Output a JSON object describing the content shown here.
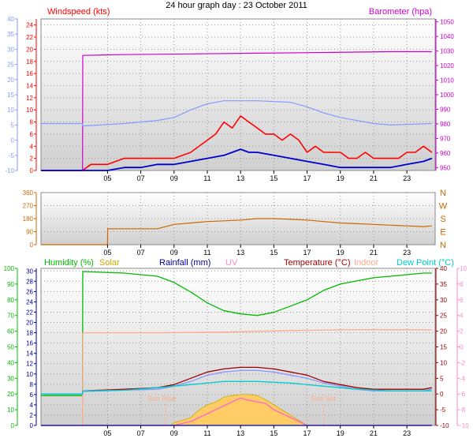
{
  "title": "24 hour graph day : 23 October 2011",
  "colors": {
    "windspeed": "#ff0000",
    "windgust": "#ff0000",
    "windavg": "#0000cc",
    "barometer": "#cc00cc",
    "temp_left_axis": "#8899ff",
    "wind_dir": "#cc6600",
    "humidity": "#00bb00",
    "solar": "#ccaa00",
    "rainfall": "#000099",
    "uv": "#ff88cc",
    "temperature": "#990000",
    "indoor": "#ffaa88",
    "dew_point": "#00cccc",
    "solar_fill": "#ffcc66",
    "uv_line": "#ff66cc"
  },
  "chart_data": [
    {
      "type": "line",
      "name": "wind-barometer-panel",
      "labels": {
        "left": "Windspeed (kts)",
        "right": "Barometer (hpa)"
      },
      "x_ticks": [
        "05",
        "07",
        "09",
        "11",
        "13",
        "15",
        "17",
        "19",
        "21",
        "23"
      ],
      "xlim": [
        1,
        24.7
      ],
      "outer_left_ticks": [
        "-10",
        "-5",
        "0",
        "5",
        "10",
        "15",
        "20",
        "25",
        "30",
        "35",
        "40"
      ],
      "outer_left_ylim": [
        -10,
        40
      ],
      "left_ticks": [
        "0",
        "2",
        "4",
        "6",
        "8",
        "10",
        "12",
        "14",
        "16",
        "18",
        "20",
        "22",
        "24"
      ],
      "left_ylim": [
        0,
        25
      ],
      "right_ticks": [
        "950",
        "960",
        "970",
        "980",
        "990",
        "1000",
        "1010",
        "1020",
        "1030",
        "1040",
        "1050"
      ],
      "right_ylim": [
        948,
        1052
      ],
      "grid": true,
      "series": [
        {
          "key": "barometer",
          "axis": "right",
          "x": [
            1,
            3.5,
            3.51,
            6,
            10,
            14,
            18,
            22,
            24.5
          ],
          "y": [
            948,
            948,
            1027,
            1027.5,
            1028,
            1028.5,
            1029,
            1029.5,
            1029.5
          ]
        },
        {
          "key": "temp_left_axis",
          "axis": "outer_left",
          "x": [
            1,
            3.5,
            3.51,
            6,
            8,
            9,
            10,
            11,
            12,
            14,
            16,
            17,
            18,
            19,
            21,
            22,
            24.5
          ],
          "y": [
            5.5,
            5.5,
            4.7,
            5.5,
            6.5,
            7.5,
            10,
            12,
            13,
            13,
            12.5,
            11,
            9,
            7.5,
            5.5,
            5,
            5.5
          ]
        },
        {
          "key": "windgust",
          "axis": "left",
          "x": [
            1,
            3.5,
            4,
            5,
            6,
            7,
            8,
            9,
            10,
            11,
            11.5,
            12,
            12.5,
            13,
            13.5,
            14,
            14.5,
            15,
            15.5,
            16,
            16.5,
            17,
            17.5,
            18,
            18.5,
            19,
            19.5,
            20,
            20.5,
            21,
            21.5,
            22,
            22.5,
            23,
            23.5,
            24,
            24.5
          ],
          "y": [
            0,
            0,
            1,
            1,
            2,
            2,
            2,
            2,
            3,
            5,
            6,
            8,
            7,
            9,
            8,
            7,
            6,
            6,
            5,
            6,
            5,
            3,
            4,
            3,
            3,
            3,
            2,
            2,
            3,
            2,
            2,
            2,
            2,
            3,
            3,
            4,
            3
          ]
        },
        {
          "key": "windavg",
          "axis": "left",
          "x": [
            1,
            3.5,
            4,
            5,
            6,
            7,
            8,
            9,
            10,
            11,
            12,
            12.5,
            13,
            13.5,
            14,
            15,
            16,
            17,
            18,
            19,
            20,
            21,
            22,
            23,
            24,
            24.5
          ],
          "y": [
            0,
            0,
            0,
            0,
            0.5,
            0.5,
            1,
            1,
            1.5,
            2,
            2.5,
            3,
            3.5,
            3,
            3,
            2.5,
            2,
            1.5,
            1,
            0.5,
            0.5,
            0.5,
            0.5,
            1,
            1.5,
            2
          ]
        }
      ]
    },
    {
      "type": "line",
      "name": "wind-direction-panel",
      "left_ticks": [
        "0",
        "90",
        "180",
        "270",
        "360"
      ],
      "ylim": [
        0,
        360
      ],
      "right_ticks": [
        "N",
        "E",
        "S",
        "W",
        "N"
      ],
      "x_ticks": [
        "05",
        "07",
        "09",
        "11",
        "13",
        "15",
        "17",
        "19",
        "21",
        "23"
      ],
      "xlim": [
        1,
        24.7
      ],
      "grid": true,
      "series": [
        {
          "key": "wind_dir",
          "x": [
            1,
            5,
            5.01,
            8,
            9,
            10,
            11,
            12,
            13,
            14,
            15,
            16,
            17,
            18,
            19,
            20,
            21,
            22,
            23,
            24,
            24.5
          ],
          "y": [
            0,
            0,
            110,
            110,
            140,
            150,
            160,
            165,
            170,
            180,
            180,
            175,
            170,
            160,
            150,
            145,
            140,
            135,
            130,
            125,
            130
          ]
        }
      ]
    },
    {
      "type": "line",
      "name": "temperature-humidity-panel",
      "labels": {
        "humidity": "Humidity (%)",
        "solar": "Solar",
        "rainfall": "Rainfall (mm)",
        "uv": "UV",
        "temperature": "Temperature (°C)",
        "indoor": "Indoor",
        "dew_point": "Dew Point (°C)",
        "sun_rise": "Sun Rise",
        "sun_set": "Sun Set"
      },
      "x_ticks": [
        "05",
        "07",
        "09",
        "11",
        "13",
        "15",
        "17",
        "19",
        "21",
        "23"
      ],
      "xlim": [
        1,
        24.7
      ],
      "humidity_ticks": [
        "0",
        "10",
        "20",
        "30",
        "40",
        "50",
        "60",
        "70",
        "80",
        "90",
        "100"
      ],
      "humidity_ylim": [
        0,
        100
      ],
      "rain_ticks": [
        "0",
        "2",
        "4",
        "6",
        "8",
        "10",
        "12",
        "14",
        "16",
        "18",
        "20",
        "22",
        "24",
        "26",
        "28",
        "30"
      ],
      "rain_ylim": [
        0,
        30.5
      ],
      "temp_ticks": [
        "-10",
        "-5",
        "0",
        "5",
        "10",
        "15",
        "20",
        "25",
        "30",
        "35",
        "40"
      ],
      "temp_ylim": [
        -10,
        40
      ],
      "uv_ticks": [
        "-10",
        "-8",
        "-6",
        "-4",
        "-2",
        "0",
        "2",
        "4",
        "6",
        "8",
        "10"
      ],
      "uv_ylim": [
        -10,
        10
      ],
      "sun_rise_x": 8.5,
      "sun_set_x": 18.0,
      "grid": true,
      "series": [
        {
          "key": "humidity",
          "x": [
            1,
            3.5,
            3.51,
            6,
            8,
            9,
            10,
            11,
            12,
            13,
            14,
            15,
            16,
            17,
            18,
            19,
            20,
            21,
            22,
            23,
            24,
            24.5
          ],
          "y": [
            19,
            19,
            98,
            97,
            95,
            91,
            85,
            78,
            73,
            71,
            70,
            72,
            76,
            80,
            86,
            90,
            92,
            94,
            95,
            96,
            97,
            97
          ]
        },
        {
          "key": "indoor",
          "axis": "temp",
          "x": [
            1,
            3.5,
            3.51,
            8,
            12,
            16,
            20,
            24.5
          ],
          "y": [
            -10,
            -10,
            19.5,
            19.5,
            19.7,
            20.2,
            20.5,
            20.4
          ]
        },
        {
          "key": "temperature",
          "axis": "temp",
          "x": [
            1,
            3.5,
            3.51,
            6,
            8,
            9,
            10,
            11,
            12,
            13,
            14,
            15,
            16,
            17,
            18,
            19,
            20,
            21,
            22,
            23,
            24,
            24.5
          ],
          "y": [
            0,
            0,
            1,
            1.5,
            2,
            3,
            5,
            7,
            8,
            8.5,
            8.5,
            8,
            7,
            6,
            4,
            3,
            2,
            1.5,
            1.5,
            1.5,
            1.5,
            2
          ]
        },
        {
          "key": "temp_left_axis",
          "axis": "temp",
          "x": [
            1,
            3.5,
            3.51,
            6,
            8,
            9,
            10,
            11,
            12,
            13,
            14,
            15,
            16,
            17,
            18,
            19,
            20,
            21,
            22,
            23,
            24,
            24.5
          ],
          "y": [
            0,
            0,
            1,
            1.2,
            1.5,
            2.5,
            4,
            6,
            7,
            7.5,
            7.5,
            7,
            6,
            5,
            3.5,
            2.5,
            1.5,
            1,
            1,
            1,
            1,
            1.5
          ]
        },
        {
          "key": "dew_point",
          "axis": "temp",
          "x": [
            1,
            3.5,
            3.51,
            6,
            8,
            10,
            12,
            14,
            16,
            18,
            20,
            22,
            24.5
          ],
          "y": [
            0,
            0,
            0.8,
            1.2,
            2,
            3,
            4,
            4,
            3.5,
            2.5,
            1.5,
            1,
            1
          ]
        },
        {
          "key": "solar_fill",
          "axis": "rain",
          "x": [
            8.8,
            9,
            10,
            10.5,
            11,
            11.5,
            12,
            12.5,
            13,
            13.5,
            14,
            14.5,
            15,
            15.5,
            16,
            16.5,
            17
          ],
          "y": [
            0,
            0.5,
            1.5,
            3,
            4,
            4.5,
            5.5,
            5.8,
            6,
            6,
            5.8,
            5,
            4,
            3,
            2,
            1,
            0
          ]
        },
        {
          "key": "uv_line",
          "axis": "uv",
          "x": [
            1,
            9,
            10,
            11,
            11.5,
            12,
            12.5,
            13,
            13.5,
            14,
            14.5,
            15,
            16,
            17,
            24.5
          ],
          "y": [
            -10,
            -10,
            -9.5,
            -8.5,
            -8,
            -7.5,
            -7,
            -6.5,
            -6.8,
            -7,
            -7.2,
            -8,
            -9,
            -10,
            -10
          ]
        },
        {
          "key": "rainfall",
          "axis": "rain",
          "x": [
            1,
            24.5
          ],
          "y": [
            0,
            0
          ]
        }
      ]
    }
  ]
}
